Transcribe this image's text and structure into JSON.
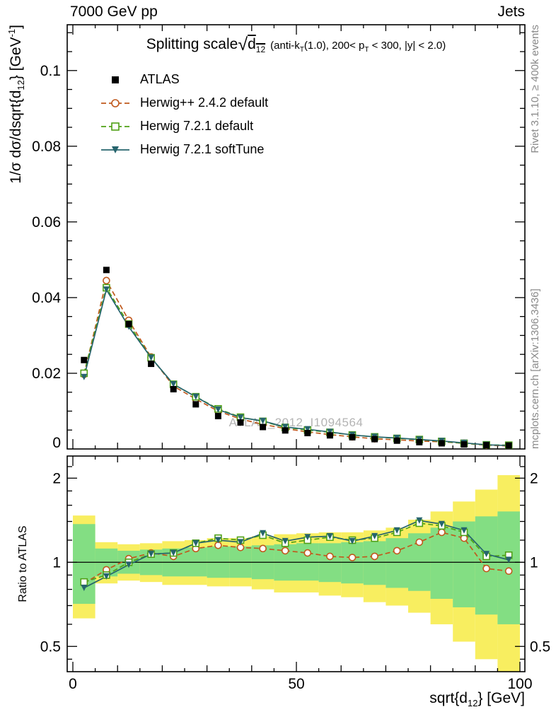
{
  "header": {
    "left": "7000 GeV pp",
    "right": "Jets"
  },
  "title": {
    "prefix": "Splitting scale",
    "radical": "√",
    "radicand": "d",
    "radicand_sub": "12",
    "cond_a": "(anti-k",
    "cond_a_sub": "T",
    "cond_b": "(1.0), 200< p",
    "cond_b_sub": "T",
    "cond_c": " < 300, |y| < 2.0)"
  },
  "axes": {
    "main_y_label": {
      "a": "1/σ dσ/dsqrt{d",
      "sub": "12",
      "b": "} [GeV",
      "sup": "-1",
      "c": "]"
    },
    "x_label": {
      "a": "sqrt{d",
      "sub": "12",
      "b": "} [GeV]"
    },
    "ratio_y_label": "Ratio to ATLAS"
  },
  "side_notes": {
    "top_right": "Rivet 3.1.10, ≥ 400k events",
    "bottom_right": "mcplots.cern.ch [arXiv:1306.3436]"
  },
  "watermark": "ATLAS_2012_I1094564",
  "chart_data": {
    "type": "line",
    "title": "Splitting scale sqrt(d12) (anti-kT(1.0), 200< pT < 300, |y| < 2.0)",
    "xlabel": "sqrt{d12} [GeV]",
    "ylabel": "1/σ dσ/dsqrt{d12} [GeV^-1]",
    "ratio_label": "Ratio to ATLAS",
    "x": [
      2.5,
      7.5,
      12.5,
      17.5,
      22.5,
      27.5,
      32.5,
      37.5,
      42.5,
      47.5,
      52.5,
      57.5,
      62.5,
      67.5,
      72.5,
      77.5,
      82.5,
      87.5,
      92.5,
      97.5
    ],
    "bin_width": 5,
    "xlim": [
      0,
      100
    ],
    "xticks": [
      0,
      50,
      100
    ],
    "series": [
      {
        "name": "ATLAS",
        "color": "#000000",
        "marker": "square-filled",
        "line": "none",
        "main": [
          0.0235,
          0.0473,
          0.033,
          0.0225,
          0.0158,
          0.0118,
          0.0087,
          0.007,
          0.0058,
          0.0049,
          0.0042,
          0.0036,
          0.0031,
          0.0026,
          0.0022,
          0.0018,
          0.0015,
          0.0012,
          0.001,
          0.0009
        ]
      },
      {
        "name": "Herwig++ 2.4.2 default",
        "color": "#c0591d",
        "marker": "circle-open",
        "line": "dashed",
        "main": [
          0.0197,
          0.0445,
          0.034,
          0.0243,
          0.0166,
          0.0132,
          0.01,
          0.0079,
          0.0065,
          0.0054,
          0.0045,
          0.0038,
          0.0032,
          0.0027,
          0.0024,
          0.0021,
          0.0019,
          0.0015,
          0.001,
          0.0008
        ],
        "ratio": [
          0.84,
          0.94,
          1.03,
          1.08,
          1.05,
          1.12,
          1.15,
          1.13,
          1.12,
          1.1,
          1.08,
          1.05,
          1.04,
          1.05,
          1.1,
          1.18,
          1.28,
          1.22,
          0.95,
          0.93
        ]
      },
      {
        "name": "Herwig 7.2.1 default",
        "color": "#4fa016",
        "marker": "square-open",
        "line": "dashed",
        "main": [
          0.02,
          0.0426,
          0.033,
          0.0241,
          0.0171,
          0.0138,
          0.0106,
          0.0084,
          0.0073,
          0.0057,
          0.005,
          0.0044,
          0.0037,
          0.0032,
          0.0028,
          0.0025,
          0.002,
          0.0015,
          0.0011,
          0.001
        ],
        "ratio": [
          0.85,
          0.9,
          1.0,
          1.07,
          1.08,
          1.17,
          1.22,
          1.2,
          1.25,
          1.17,
          1.2,
          1.23,
          1.2,
          1.22,
          1.28,
          1.38,
          1.35,
          1.28,
          1.05,
          1.06
        ]
      },
      {
        "name": "Herwig 7.2.1 softTune",
        "color": "#26646d",
        "marker": "triangle-down-filled",
        "line": "solid",
        "main": [
          0.019,
          0.0421,
          0.0323,
          0.0241,
          0.0171,
          0.0138,
          0.0104,
          0.0083,
          0.0074,
          0.0058,
          0.0052,
          0.0045,
          0.0037,
          0.0032,
          0.0029,
          0.0025,
          0.0021,
          0.0016,
          0.0011,
          0.0009
        ],
        "ratio": [
          0.81,
          0.89,
          0.98,
          1.07,
          1.08,
          1.17,
          1.2,
          1.18,
          1.27,
          1.19,
          1.23,
          1.24,
          1.19,
          1.24,
          1.3,
          1.41,
          1.37,
          1.3,
          1.07,
          1.02
        ]
      }
    ],
    "main": {
      "ylim": [
        0,
        0.1121
      ],
      "yticks": [
        0,
        0.02,
        0.04,
        0.06,
        0.08,
        0.1
      ],
      "y_minor_step": 0.005
    },
    "ratio": {
      "scale": "log",
      "ylim": [
        0.406,
        2.4
      ],
      "yticks": [
        0.5,
        1,
        2
      ],
      "yticks_minor": [
        0.45,
        0.6,
        0.7,
        0.8,
        0.9,
        1.2,
        1.4,
        1.6,
        1.8,
        2.2
      ],
      "reference_line": 1,
      "band_outer": {
        "color": "#f8ee60",
        "lo": [
          0.63,
          0.84,
          0.86,
          0.85,
          0.83,
          0.83,
          0.82,
          0.82,
          0.8,
          0.78,
          0.78,
          0.76,
          0.75,
          0.72,
          0.7,
          0.66,
          0.6,
          0.52,
          0.45,
          0.38
        ],
        "hi": [
          1.47,
          1.18,
          1.16,
          1.17,
          1.19,
          1.2,
          1.22,
          1.22,
          1.24,
          1.26,
          1.27,
          1.28,
          1.28,
          1.3,
          1.33,
          1.42,
          1.52,
          1.65,
          1.82,
          2.05
        ]
      },
      "band_inner": {
        "color": "#83de83",
        "lo": [
          0.71,
          0.89,
          0.91,
          0.9,
          0.89,
          0.89,
          0.88,
          0.88,
          0.87,
          0.86,
          0.86,
          0.85,
          0.84,
          0.83,
          0.81,
          0.79,
          0.74,
          0.69,
          0.65,
          0.6
        ],
        "hi": [
          1.37,
          1.12,
          1.1,
          1.11,
          1.12,
          1.13,
          1.14,
          1.14,
          1.15,
          1.16,
          1.17,
          1.17,
          1.18,
          1.19,
          1.22,
          1.27,
          1.33,
          1.4,
          1.46,
          1.52
        ]
      }
    },
    "legend_position": "top-left",
    "grid": false
  }
}
